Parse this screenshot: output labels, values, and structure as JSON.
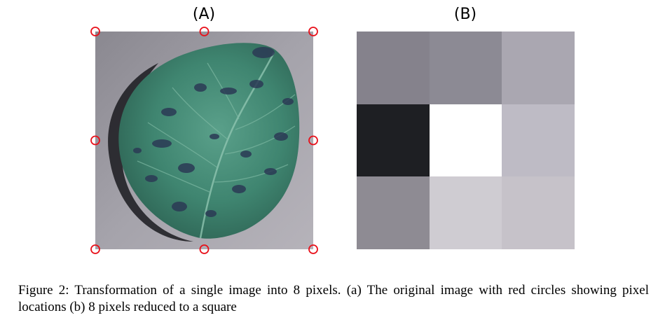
{
  "panels": {
    "a": {
      "label": "(A)"
    },
    "b": {
      "label": "(B)"
    }
  },
  "marker_color": "#e8101a",
  "pixel_grid": {
    "rows": 3,
    "cols": 3,
    "colors": [
      [
        "#85828c",
        "#8c8a94",
        "#aaa7b1"
      ],
      [
        "#1e1f23",
        "#ffffff",
        "#bebbc5"
      ],
      [
        "#8e8b93",
        "#cfccd2",
        "#c6c2c9"
      ]
    ]
  },
  "caption": {
    "text": "Figure 2: Transformation of a single image into 8 pixels. (a) The original image with red circles showing pixel locations (b) 8 pixels reduced to a square"
  }
}
